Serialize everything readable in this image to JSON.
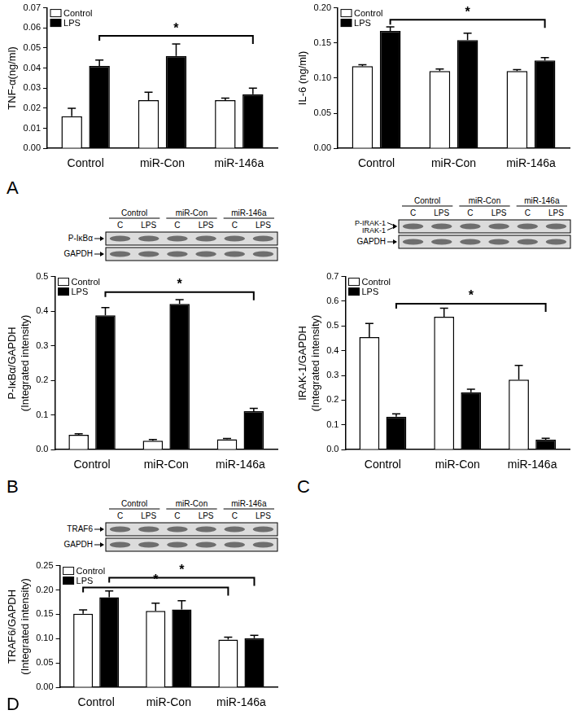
{
  "chart_data": [
    {
      "type": "bar",
      "panel_label": "A",
      "y_label": "TNF-α(ng/ml)",
      "categories": [
        "Control",
        "miR-Con",
        "miR-146a"
      ],
      "series": [
        {
          "name": "Control",
          "color": "#ffffff",
          "values": [
            0.016,
            0.024,
            0.024
          ],
          "errors": [
            0.004,
            0.004,
            0.001
          ]
        },
        {
          "name": "LPS",
          "color": "#000000",
          "values": [
            0.041,
            0.046,
            0.027
          ],
          "errors": [
            0.003,
            0.006,
            0.003
          ]
        }
      ],
      "ylim": [
        0,
        0.07
      ],
      "yticks": [
        {
          "value": 0,
          "label": "0.00"
        },
        {
          "value": 0.01,
          "label": "0.01"
        },
        {
          "value": 0.02,
          "label": "0.02"
        },
        {
          "value": 0.03,
          "label": "0.03"
        },
        {
          "value": 0.04,
          "label": "0.04"
        },
        {
          "value": 0.05,
          "label": "0.05"
        },
        {
          "value": 0.06,
          "label": "0.06"
        },
        {
          "value": 0.07,
          "label": "0.07"
        }
      ],
      "grid": false,
      "legend": "upper left",
      "annotations": [
        {
          "text": "*",
          "from": {
            "category": 0,
            "series": 1
          },
          "to": {
            "category": 2,
            "series": 1
          },
          "y": 0.056
        }
      ]
    },
    {
      "type": "bar",
      "y_label": "IL-6 (ng/ml)",
      "categories": [
        "Control",
        "miR-Con",
        "miR-146a"
      ],
      "series": [
        {
          "name": "Control",
          "color": "#ffffff",
          "values": [
            0.117,
            0.11,
            0.11
          ],
          "errors": [
            0.002,
            0.003,
            0.002
          ]
        },
        {
          "name": "LPS",
          "color": "#000000",
          "values": [
            0.167,
            0.154,
            0.125
          ],
          "errors": [
            0.006,
            0.01,
            0.004
          ]
        }
      ],
      "ylim": [
        0,
        0.2
      ],
      "yticks": [
        {
          "value": 0,
          "label": "0.00"
        },
        {
          "value": 0.05,
          "label": "0.05"
        },
        {
          "value": 0.1,
          "label": "0.10"
        },
        {
          "value": 0.15,
          "label": "0.15"
        },
        {
          "value": 0.2,
          "label": "0.20"
        }
      ],
      "grid": false,
      "legend": "upper left",
      "annotations": [
        {
          "text": "*",
          "from": {
            "category": 0,
            "series": 1
          },
          "to": {
            "category": 2,
            "series": 1
          },
          "y": 0.183
        }
      ]
    },
    {
      "type": "bar",
      "panel_label": "B",
      "y_label": [
        "P-IκBα/GAPDH",
        "(Integrated intensity)"
      ],
      "categories": [
        "Control",
        "miR-Con",
        "miR-146a"
      ],
      "series": [
        {
          "name": "Control",
          "color": "#ffffff",
          "values": [
            0.043,
            0.026,
            0.03
          ],
          "errors": [
            0.003,
            0.003,
            0.002
          ]
        },
        {
          "name": "LPS",
          "color": "#000000",
          "values": [
            0.388,
            0.421,
            0.111
          ],
          "errors": [
            0.022,
            0.012,
            0.008
          ]
        }
      ],
      "ylim": [
        0,
        0.5
      ],
      "yticks": [
        {
          "value": 0,
          "label": "0.0"
        },
        {
          "value": 0.1,
          "label": "0.1"
        },
        {
          "value": 0.2,
          "label": "0.2"
        },
        {
          "value": 0.3,
          "label": "0.3"
        },
        {
          "value": 0.4,
          "label": "0.4"
        },
        {
          "value": 0.5,
          "label": "0.5"
        }
      ],
      "grid": false,
      "legend": "upper left",
      "annotations": [
        {
          "text": "*",
          "from": {
            "category": 0,
            "series": 1
          },
          "to": {
            "category": 2,
            "series": 1
          },
          "y": 0.455
        }
      ],
      "blot": {
        "groups": [
          "Control",
          "miR-Con",
          "miR-146a"
        ],
        "lanes": [
          "C",
          "LPS"
        ],
        "rows": [
          [
            "P-IκBα"
          ],
          [
            "GAPDH"
          ]
        ]
      }
    },
    {
      "type": "bar",
      "panel_label": "C",
      "y_label": [
        "IRAK-1/GAPDH",
        "(Integrated intensity)"
      ],
      "categories": [
        "Control",
        "miR-Con",
        "miR-146a"
      ],
      "series": [
        {
          "name": "Control",
          "color": "#ffffff",
          "values": [
            0.455,
            0.537,
            0.283
          ],
          "errors": [
            0.055,
            0.035,
            0.058
          ]
        },
        {
          "name": "LPS",
          "color": "#000000",
          "values": [
            0.133,
            0.232,
            0.04
          ],
          "errors": [
            0.012,
            0.012,
            0.006
          ]
        }
      ],
      "ylim": [
        0,
        0.7
      ],
      "yticks": [
        {
          "value": 0,
          "label": "0.0"
        },
        {
          "value": 0.1,
          "label": "0.1"
        },
        {
          "value": 0.2,
          "label": "0.2"
        },
        {
          "value": 0.3,
          "label": "0.3"
        },
        {
          "value": 0.4,
          "label": "0.4"
        },
        {
          "value": 0.5,
          "label": "0.5"
        },
        {
          "value": 0.6,
          "label": "0.6"
        },
        {
          "value": 0.7,
          "label": "0.7"
        }
      ],
      "grid": false,
      "legend": "upper left",
      "annotations": [
        {
          "text": "*",
          "from": {
            "category": 0,
            "series": 1
          },
          "to": {
            "category": 2,
            "series": 1
          },
          "y": 0.59
        }
      ],
      "blot": {
        "groups": [
          "Control",
          "miR-Con",
          "miR-146a"
        ],
        "lanes": [
          "C",
          "LPS"
        ],
        "rows": [
          [
            "P-IRAK-1",
            "IRAK-1"
          ],
          [
            "GAPDH"
          ]
        ]
      }
    },
    {
      "type": "bar",
      "panel_label": "D",
      "y_label": [
        "TRAF6/GAPDH",
        "(Integrated intensity)"
      ],
      "categories": [
        "Control",
        "miR-Con",
        "miR-146a"
      ],
      "series": [
        {
          "name": "Control",
          "color": "#ffffff",
          "values": [
            0.151,
            0.157,
            0.098
          ],
          "errors": [
            0.008,
            0.016,
            0.005
          ]
        },
        {
          "name": "LPS",
          "color": "#000000",
          "values": [
            0.185,
            0.16,
            0.101
          ],
          "errors": [
            0.013,
            0.018,
            0.006
          ]
        }
      ],
      "ylim": [
        0,
        0.25
      ],
      "yticks": [
        {
          "value": 0,
          "label": "0.00"
        },
        {
          "value": 0.05,
          "label": "0.05"
        },
        {
          "value": 0.1,
          "label": "0.10"
        },
        {
          "value": 0.15,
          "label": "0.15"
        },
        {
          "value": 0.2,
          "label": "0.20"
        },
        {
          "value": 0.25,
          "label": "0.25"
        }
      ],
      "grid": false,
      "legend": "upper left",
      "annotations": [
        {
          "text": "*",
          "from": {
            "category": 0,
            "series": 0
          },
          "to": {
            "category": 2,
            "series": 0
          },
          "y": 0.205
        },
        {
          "text": "*",
          "from": {
            "category": 0,
            "series": 1
          },
          "to": {
            "category": 2,
            "series": 1
          },
          "y": 0.225
        }
      ],
      "blot": {
        "groups": [
          "Control",
          "miR-Con",
          "miR-146a"
        ],
        "lanes": [
          "C",
          "LPS"
        ],
        "rows": [
          [
            "TRAF6"
          ],
          [
            "GAPDH"
          ]
        ]
      }
    }
  ]
}
